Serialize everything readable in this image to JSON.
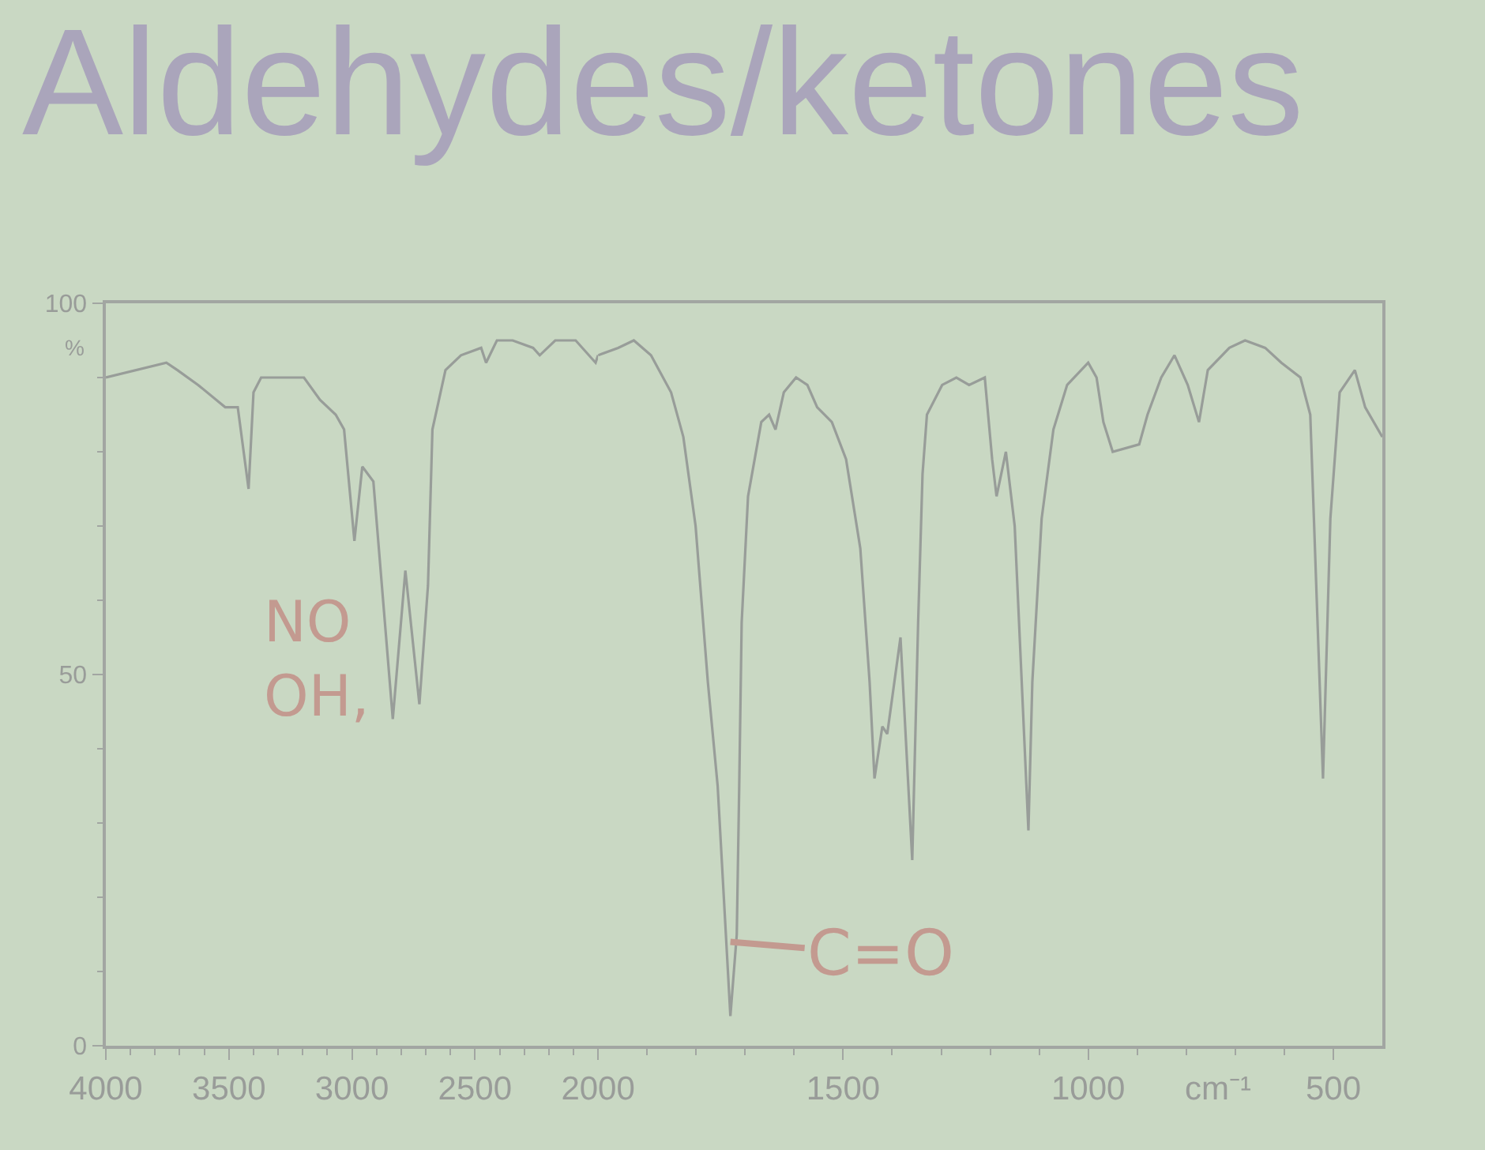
{
  "chart_data": [
    {
      "type": "line",
      "title": "Aldehydes/ketones",
      "ylabel": "%",
      "color": "#989d99",
      "line_style": "solid",
      "x": [
        4000,
        3754,
        3709,
        3625,
        3515,
        3464,
        3420,
        3400,
        3369,
        3195,
        3130,
        3066,
        3032,
        2990,
        2958,
        2913,
        2834,
        2783,
        2726,
        2691,
        2673,
        2620,
        2557,
        2475,
        2455,
        2411,
        2347,
        2264,
        2237,
        2174,
        2091,
        2010,
        2000
      ],
      "values": [
        90,
        92,
        91,
        89,
        86,
        86,
        75,
        88,
        90,
        90,
        87,
        85,
        83,
        68,
        78,
        76,
        44,
        64,
        46,
        62,
        83,
        91,
        93,
        94,
        92,
        95,
        95,
        94,
        93,
        95,
        95,
        92,
        93
      ],
      "xlim": [
        4000,
        2000
      ],
      "xticks": [
        4000,
        {
          "value": 3900,
          "label": null
        },
        {
          "value": 3800,
          "label": null
        },
        {
          "value": 3700,
          "label": null
        },
        {
          "value": 3600,
          "label": null
        },
        3500,
        {
          "value": 3400,
          "label": null
        },
        {
          "value": 3300,
          "label": null
        },
        {
          "value": 3200,
          "label": null
        },
        {
          "value": 3100,
          "label": null
        },
        3000,
        {
          "value": 2900,
          "label": null
        },
        {
          "value": 2800,
          "label": null
        },
        {
          "value": 2700,
          "label": null
        },
        {
          "value": 2600,
          "label": null
        },
        2500,
        {
          "value": 2400,
          "label": null
        },
        {
          "value": 2300,
          "label": null
        },
        {
          "value": 2200,
          "label": null
        },
        {
          "value": 2100,
          "label": null
        },
        2000
      ],
      "ylim": [
        0,
        100
      ],
      "yticks": [
        0,
        {
          "value": 10,
          "label": null
        },
        {
          "value": 20,
          "label": null
        },
        {
          "value": 30,
          "label": null
        },
        {
          "value": 40,
          "label": null
        },
        50,
        {
          "value": 60,
          "label": null
        },
        {
          "value": 70,
          "label": null
        },
        {
          "value": 80,
          "label": null
        },
        {
          "value": 90,
          "label": null
        },
        100
      ],
      "annotations": [
        "NO\nOH,"
      ]
    },
    {
      "type": "line",
      "xlabel": "cm⁻¹",
      "color": "#989d99",
      "line_style": "solid",
      "tick_labels": "x",
      "x": [
        2000,
        1959,
        1927,
        1892,
        1851,
        1826,
        1801,
        1776,
        1756,
        1730,
        1717,
        1712,
        1707,
        1694,
        1667,
        1651,
        1638,
        1621,
        1596,
        1573,
        1553,
        1523,
        1494,
        1465,
        1446,
        1436,
        1420,
        1410,
        1383,
        1359,
        1347,
        1338,
        1329,
        1298,
        1269,
        1243,
        1211,
        1196,
        1187,
        1168,
        1150,
        1122,
        1114,
        1095,
        1071,
        1043,
        1000,
        983,
        969,
        950,
        896,
        879,
        851,
        824,
        797,
        774,
        756,
        712,
        680,
        639,
        606,
        567,
        547,
        521,
        506,
        487,
        456,
        435,
        400
      ],
      "values": [
        93,
        94,
        95,
        93,
        88,
        82,
        70,
        49,
        35,
        4,
        15,
        35,
        57,
        74,
        84,
        85,
        83,
        88,
        90,
        89,
        86,
        84,
        79,
        67,
        49,
        36,
        43,
        42,
        55,
        25,
        57,
        77,
        85,
        89,
        90,
        89,
        90,
        79,
        74,
        80,
        70,
        29,
        49,
        71,
        83,
        89,
        92,
        90,
        84,
        80,
        81,
        85,
        90,
        93,
        89,
        84,
        91,
        94,
        95,
        94,
        92,
        90,
        85,
        36,
        71,
        88,
        91,
        86,
        82
      ],
      "xlim": [
        2000,
        400
      ],
      "xticks": [
        {
          "value": 1900,
          "label": null
        },
        {
          "value": 1800,
          "label": null
        },
        {
          "value": 1700,
          "label": null
        },
        {
          "value": 1600,
          "label": null
        },
        1500,
        {
          "value": 1400,
          "label": null
        },
        {
          "value": 1300,
          "label": null
        },
        {
          "value": 1200,
          "label": null
        },
        {
          "value": 1100,
          "label": null
        },
        1000,
        {
          "value": 900,
          "label": null
        },
        {
          "value": 800,
          "label": null
        },
        {
          "value": 700,
          "label": null
        },
        {
          "value": 600,
          "label": null
        },
        500
      ],
      "ylim": [
        0,
        100
      ],
      "annotations": [
        {
          "text": "C=O",
          "x": 1730,
          "y": 14
        }
      ]
    }
  ]
}
